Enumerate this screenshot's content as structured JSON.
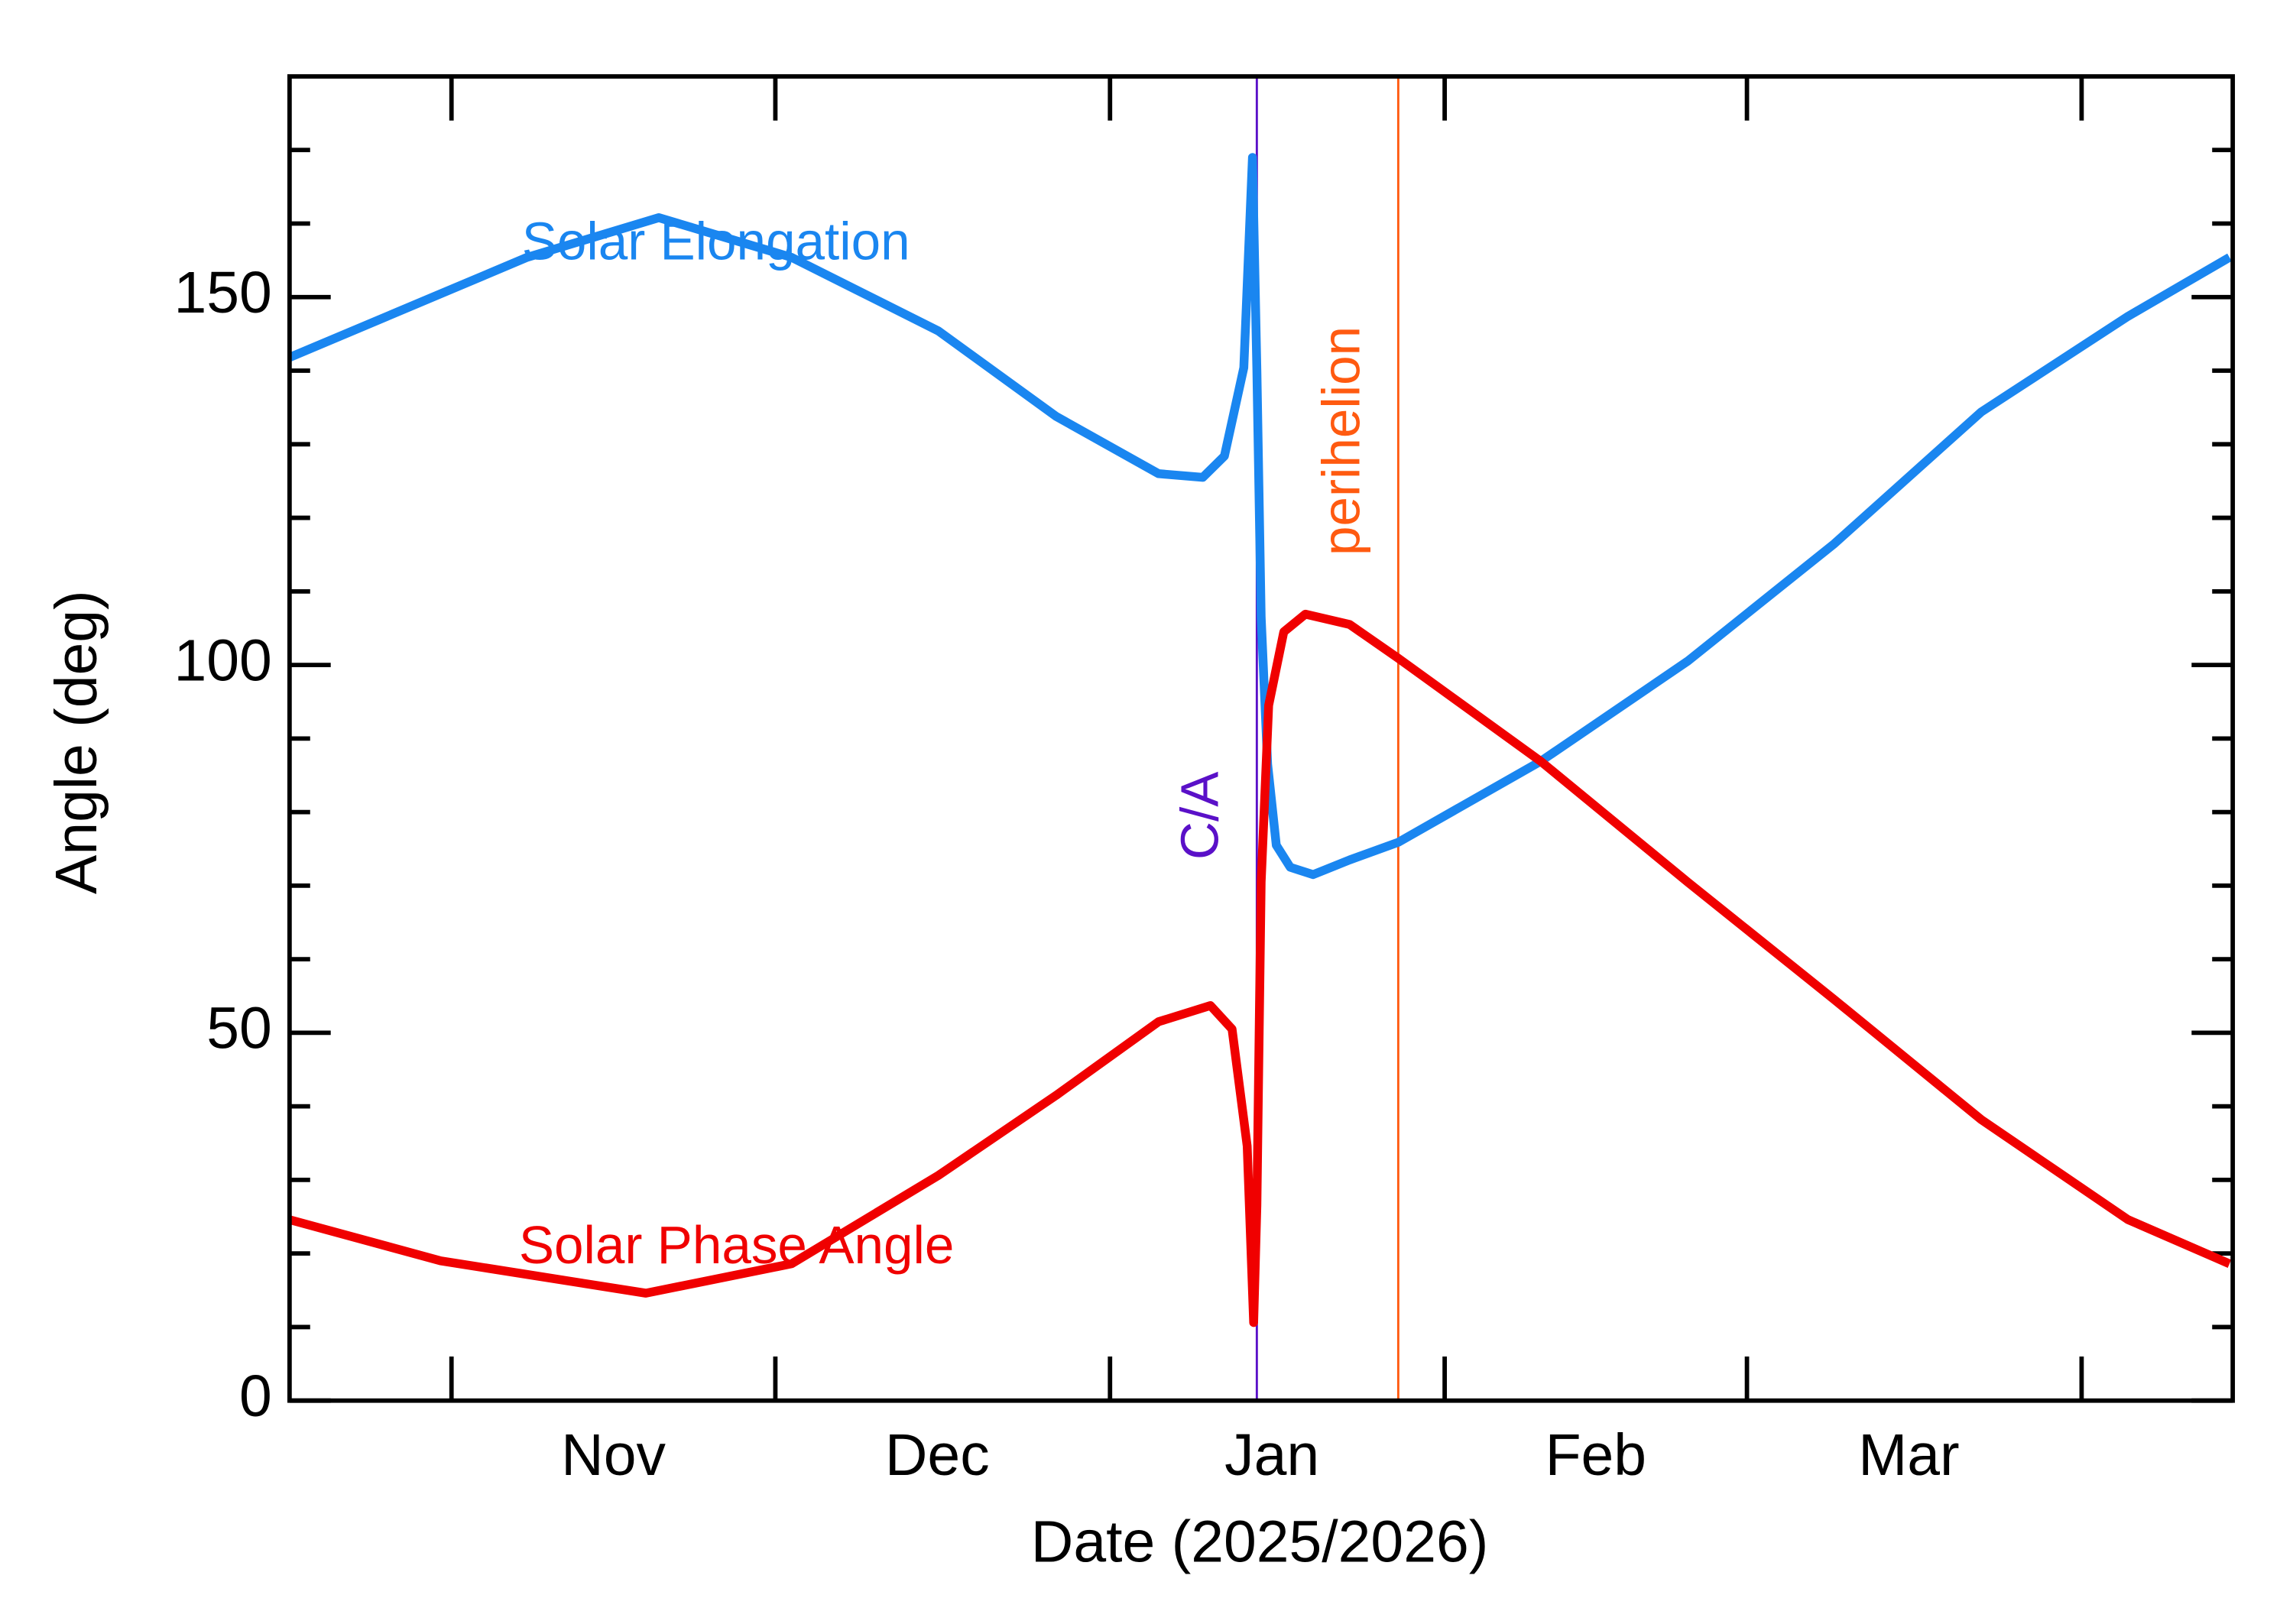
{
  "chart_data": {
    "type": "line",
    "xlabel": "Date (2025/2026)",
    "ylabel": "Angle (deg)",
    "xlim": [
      -76,
      104
    ],
    "ylim": [
      0,
      180
    ],
    "xticks": [
      {
        "value": -46,
        "label": "Nov"
      },
      {
        "value": -16,
        "label": "Dec"
      },
      {
        "value": 15,
        "label": "Jan"
      },
      {
        "value": 45,
        "label": "Feb"
      },
      {
        "value": 74,
        "label": "Mar"
      }
    ],
    "xtick_marks": [
      -61,
      -31,
      0,
      31,
      59,
      90
    ],
    "yticks": [
      0,
      50,
      100,
      150
    ],
    "yminor_ticks": [
      10,
      20,
      30,
      40,
      60,
      70,
      80,
      90,
      110,
      120,
      130,
      140,
      160,
      170
    ],
    "series": [
      {
        "name": "Solar Elongation",
        "color": "#1a86f0",
        "x": [
          -76,
          -54,
          -41.8,
          -29.5,
          -15.9,
          -5,
          4.5,
          8.6,
          10.6,
          12.4,
          13.2,
          13.6,
          14,
          14.6,
          15.4,
          16.7,
          18.8,
          22.2,
          26.7,
          39.9,
          53.5,
          67.1,
          80.7,
          94.3,
          103.7
        ],
        "values": [
          141.8,
          155.4,
          160.8,
          155.4,
          145.4,
          133.8,
          126,
          125.5,
          128.4,
          140.4,
          169,
          140,
          106.5,
          86.5,
          75.5,
          72.5,
          71.5,
          73.5,
          75.9,
          86.9,
          100.5,
          116.5,
          134.4,
          147.4,
          155.4
        ]
      },
      {
        "name": "Solar Phase Angle",
        "color": "#f00000",
        "x": [
          -76,
          -62,
          -43,
          -29.5,
          -15.9,
          -5,
          4.5,
          9.3,
          11.3,
          12.7,
          13.3,
          13.6,
          14,
          14.7,
          16.1,
          18.1,
          22.2,
          26.7,
          39.9,
          53.5,
          67.1,
          80.7,
          94.3,
          103.7
        ],
        "values": [
          24.6,
          19,
          14.6,
          18.6,
          30.6,
          41.5,
          51.5,
          53.7,
          50.5,
          34.6,
          10.6,
          26.6,
          70.5,
          94.5,
          104.5,
          106.9,
          105.5,
          100.9,
          86.9,
          70.5,
          54.5,
          38.2,
          24.6,
          18.6
        ]
      }
    ],
    "vlines": [
      {
        "label": "C/A",
        "x": 13.6,
        "color": "#5a10c8"
      },
      {
        "label": "perihelion",
        "x": 26.7,
        "color": "#ff5a10"
      }
    ]
  }
}
